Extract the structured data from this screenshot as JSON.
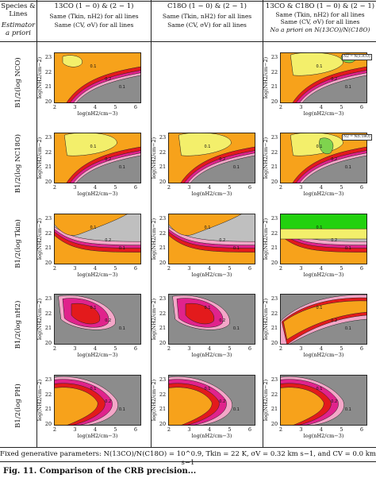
{
  "header": {
    "species_lines": "Species & Lines",
    "estimator_a_priori": "Estimator a priori",
    "col1_title": "13CO (1 − 0) & (2 − 1)",
    "col2_title": "C18O (1 − 0) & (2 − 1)",
    "col3_title": "13CO & C18O (1 − 0) & (2 − 1)",
    "col1_desc_1": "Same (Tkin, nH2) for all lines",
    "col1_desc_2": "Same (CV, σV) for all lines",
    "col2_desc_1": "Same (Tkin, nH2) for all lines",
    "col2_desc_2": "Same (CV, σV) for all lines",
    "col3_desc_1": "Same (Tkin, nH2) for all lines",
    "col3_desc_2": "Same (CV, σV) for all lines",
    "col3_desc_3": "No a priori on N(13CO)/N(C18O)"
  },
  "rows": [
    {
      "label": "B1/2(log NCO)"
    },
    {
      "label": "B1/2(log NC18O)"
    },
    {
      "label": "B1/2(log Tkin)"
    },
    {
      "label": "B1/2(log nH2)"
    },
    {
      "label": "B1/2(log PH)"
    }
  ],
  "axes": {
    "ylabel": "log(NH2/cm−2)",
    "xlabel": "log(nH2/cm−3)",
    "xticks": [
      "2",
      "3",
      "4",
      "5",
      "6"
    ],
    "yticks": [
      "23",
      "22",
      "21",
      "20"
    ]
  },
  "inset_labels": {
    "r1c3": "N2 = N(13CO)",
    "r2c3": "N2 = N(C18O)"
  },
  "contour_labels": [
    "0.1",
    "0.2",
    "0.3",
    "0.03"
  ],
  "footer": "Fixed generative parameters: N(13CO)/N(C18O) = 10^0.9, Tkin = 22 K, σV = 0.32 km s−1, and CV = 0.0 km s−1",
  "caption": "Fig. 11. Comparison of the CRB precision...",
  "colors": {
    "orange": "#f7a21b",
    "red": "#e31a1c",
    "magenta": "#e0238c",
    "pink": "#f4a6c8",
    "gray": "#8c8c8c",
    "light_gray": "#bfbfbf",
    "yellow": "#f3ef6b",
    "green": "#7fd34e",
    "bright_green": "#22d10e"
  }
}
